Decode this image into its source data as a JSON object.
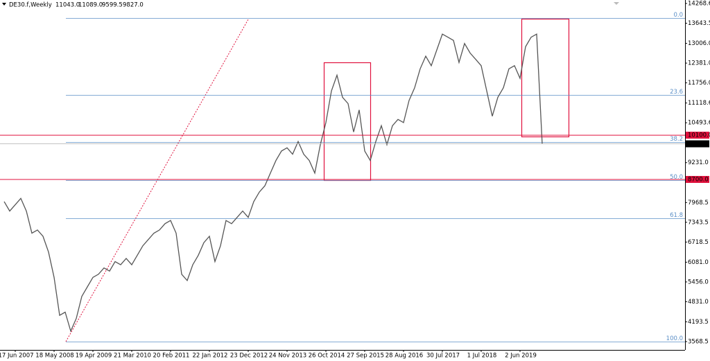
{
  "header": {
    "symbol": "DE30.f,Weekly",
    "ohlc": [
      "11043.0",
      "11089.0",
      "9599.5",
      "9827.0"
    ]
  },
  "chart_data": {
    "type": "line",
    "color": "#555555",
    "categories": [
      null,
      null,
      "17 Jun 2007",
      null,
      null,
      null,
      null,
      null,
      null,
      "18 May 2008",
      null,
      null,
      null,
      null,
      null,
      null,
      "19 Apr 2009",
      null,
      null,
      null,
      null,
      null,
      null,
      "21 Mar 2010",
      null,
      null,
      null,
      null,
      null,
      null,
      "20 Feb 2011",
      null,
      null,
      null,
      null,
      null,
      null,
      "22 Jan 2012",
      null,
      null,
      null,
      null,
      null,
      null,
      "23 Dec 2012",
      null,
      null,
      null,
      null,
      null,
      null,
      "24 Nov 2013",
      null,
      null,
      null,
      null,
      null,
      null,
      "26 Oct 2014",
      null,
      null,
      null,
      null,
      null,
      null,
      "27 Sep 2015",
      null,
      null,
      null,
      null,
      null,
      null,
      "28 Aug 2016",
      null,
      null,
      null,
      null,
      null,
      null,
      "30 Jul 2017",
      null,
      null,
      null,
      null,
      null,
      null,
      "1 Jul 2018",
      null,
      null,
      null,
      null,
      null,
      null,
      "2 Jun 2019",
      null,
      null,
      null,
      null
    ],
    "values": [
      8000,
      7700,
      7900,
      8100,
      7700,
      7000,
      7100,
      6900,
      6400,
      5600,
      4400,
      4500,
      3900,
      4300,
      5000,
      5300,
      5600,
      5700,
      5900,
      5800,
      6100,
      6000,
      6200,
      6000,
      6300,
      6600,
      6800,
      7000,
      7100,
      7300,
      7400,
      7000,
      5700,
      5500,
      6000,
      6300,
      6700,
      6900,
      6100,
      6600,
      7400,
      7300,
      7500,
      7700,
      7500,
      8000,
      8300,
      8500,
      8900,
      9300,
      9600,
      9700,
      9500,
      9900,
      9500,
      9300,
      8900,
      9800,
      10500,
      11500,
      12000,
      11300,
      11100,
      10200,
      10900,
      9600,
      9300,
      9900,
      10400,
      9800,
      10400,
      10600,
      10500,
      11200,
      11600,
      12200,
      12600,
      12300,
      12800,
      13300,
      13200,
      13100,
      12400,
      13000,
      12700,
      12500,
      12300,
      11500,
      10700,
      11300,
      11600,
      12200,
      12300,
      11900,
      12900,
      13200,
      13300,
      9827
    ],
    "ylim": [
      3305,
      14378
    ],
    "yticks": [
      14268.6,
      13643.5,
      {
        "value": 13006,
        "label": "13006.0"
      },
      {
        "value": 12381,
        "label": "12381.0"
      },
      {
        "value": 11756,
        "label": "11756.0"
      },
      11118.6,
      10493.6,
      {
        "value": 9231,
        "label": "9231.0"
      },
      7968.5,
      7343.5,
      6718.5,
      {
        "value": 6081,
        "label": "6081.0"
      },
      {
        "value": 5456,
        "label": "5456.0"
      },
      {
        "value": 4831,
        "label": "4831.0"
      },
      4193.5,
      3568.5
    ],
    "fib_levels": [
      {
        "label": "0.0",
        "value": 13808
      },
      {
        "label": "23.6",
        "value": 11374
      },
      {
        "label": "38.2",
        "value": 9884
      },
      {
        "label": "50.0",
        "value": 8678
      },
      {
        "label": "61.8",
        "value": 7472
      },
      {
        "label": "100.0",
        "value": 3568.5
      }
    ],
    "levels": [
      {
        "value": 10100,
        "label": "10100.0",
        "color": "#e0103c"
      },
      {
        "value": 8700,
        "label": "8700.0",
        "color": "#e0103c"
      }
    ],
    "last_price": {
      "value": 9827,
      "label": "9827.0",
      "color": "#000000"
    }
  }
}
